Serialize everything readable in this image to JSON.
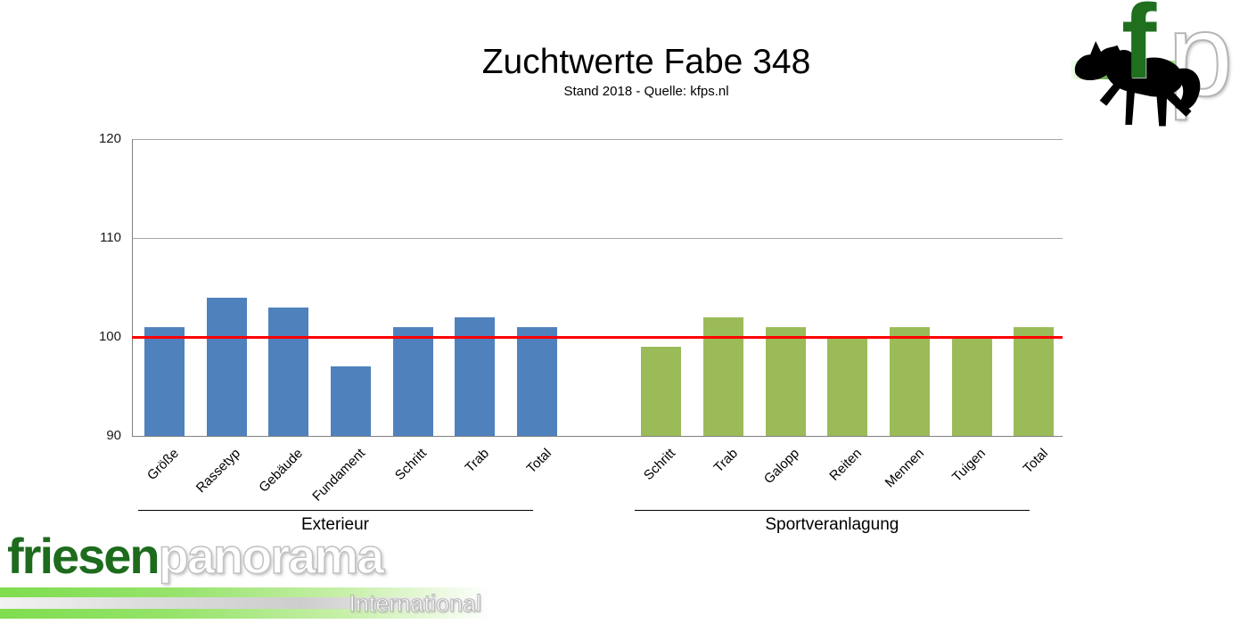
{
  "title": "Zuchtwerte Fabe 348",
  "subtitle": "Stand 2018 - Quelle: kfps.nl",
  "chart_data": {
    "type": "bar",
    "title": "Zuchtwerte Fabe 348",
    "subtitle": "Stand 2018 - Quelle: kfps.nl",
    "ylim": [
      90,
      120
    ],
    "yticks": [
      90,
      100,
      110,
      120
    ],
    "grid": true,
    "legend": "none",
    "reference_line": {
      "value": 100,
      "color": "#FF0000"
    },
    "groups": [
      {
        "name": "Exterieur",
        "color": "#4F81BD",
        "categories": [
          "Größe",
          "Rassetyp",
          "Gebäude",
          "Fundament",
          "Schritt",
          "Trab",
          "Total"
        ],
        "values": [
          101,
          104,
          103,
          97,
          101,
          102,
          101
        ]
      },
      {
        "name": "Sportveranlagung",
        "color": "#9BBB59",
        "categories": [
          "Schritt",
          "Trab",
          "Galopp",
          "Reiten",
          "Mennen",
          "Tuigen",
          "Total"
        ],
        "values": [
          99,
          102,
          101,
          100,
          101,
          100,
          101
        ]
      }
    ]
  },
  "branding": {
    "corner_logo": {
      "f": "f",
      "p": "p",
      "horse_icon": "black-horse-silhouette",
      "band_color": "#4E9B2E"
    },
    "footer_logo": {
      "friesen": "friesen",
      "panorama": "panorama",
      "tagline": "International",
      "friesen_color": "#1E6B1E"
    }
  }
}
